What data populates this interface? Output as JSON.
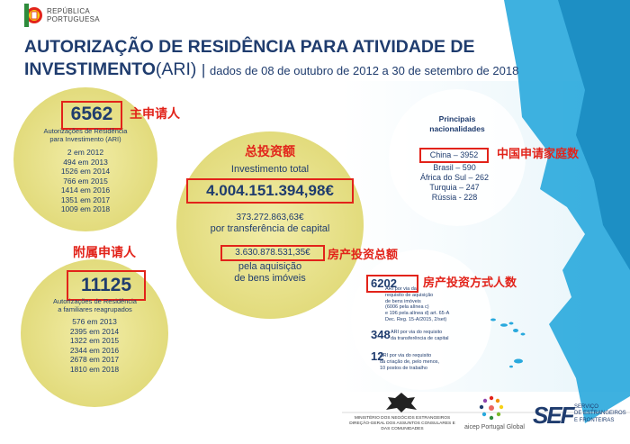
{
  "header": {
    "logo_line1": "REPÚBLICA",
    "logo_line2": "PORTUGUESA",
    "title_line1": "AUTORIZAÇÃO DE RESIDÊNCIA PARA ATIVIDADE DE",
    "title_line2": "INVESTIMENTO",
    "title_acronym": "(ARI) ",
    "title_separator": "| ",
    "date_range": "dados de 08 de outubro de 2012 a 30 de setembro de 2018"
  },
  "annotations": {
    "main_applicants": "主申请人",
    "family_members": "附属申请人",
    "total_investment": "总投资额",
    "real_estate_total": "房产投资总额",
    "china_families": "中国申请家庭数",
    "real_estate_count": "房产投资方式人数"
  },
  "main_applicants": {
    "total": "6562",
    "caption_line1": "Autorizações de Residência",
    "caption_line2": "para Investimento (ARI)",
    "years": [
      "2 em 2012",
      "494 em 2013",
      "1526 em 2014",
      "766 em 2015",
      "1414 em 2016",
      "1351 em 2017",
      "1009 em 2018"
    ]
  },
  "family_members": {
    "total": "11125",
    "caption_line1": "Autorizações de Residência",
    "caption_line2": "a familiares reagrupados",
    "years": [
      "576 em 2013",
      "2395 em 2014",
      "1322 em 2015",
      "2344 em 2016",
      "2678 em 2017",
      "1810 em 2018"
    ]
  },
  "investment": {
    "total_label": "Investimento total",
    "total_amount": "4.004.151.394,98€",
    "capital_transfer_amount": "373.272.863,63€",
    "capital_transfer_label": "por transferência de capital",
    "real_estate_amount": "3.630.878.531,35€",
    "real_estate_label_line1": "pela aquisição",
    "real_estate_label_line2": "de bens imóveis"
  },
  "nationalities": {
    "title_line1": "Principais",
    "title_line2": "nacionalidades",
    "items": [
      "China – 3952",
      "Brasil – 590",
      "África do Sul – 262",
      "Turquia – 247",
      "Rússia - 228"
    ]
  },
  "investment_types": {
    "real_estate": {
      "count": "6202",
      "desc": [
        "ARI por via da",
        "requisito de aquisição",
        "de bens imóveis",
        "(6006 pela alínea c)",
        "e 196 pela alínea d) art. 65-A",
        "Dec. Reg. 15-A/2015, 2/set)"
      ]
    },
    "capital_transfer": {
      "count": "348",
      "desc": [
        "ARI por via do requisito",
        "da transferência de capital"
      ]
    },
    "job_creation": {
      "count": "12",
      "desc": [
        "ARI por via do requisito",
        "da criação de, pelo menos,",
        "10 postos de trabalho"
      ]
    }
  },
  "footer": {
    "ministry_line1": "MINISTÉRIO DOS NEGÓCIOS ESTRANGEIROS",
    "ministry_line2": "DIREÇÃO-GERAL DOS ASSUNTOS CONSULARES E",
    "ministry_line3": "DAS COMUNIDADES",
    "aicep_text": "aicep Portugal Global",
    "sef_logo": "SEF",
    "sef_line1": "SERVIÇO",
    "sef_line2": "DE ESTRANGEIROS",
    "sef_line3": "E FRONTEIRAS"
  },
  "colors": {
    "navy": "#1f3c6e",
    "annotation_red": "#e2231a",
    "circle_yellow": "#e8e290",
    "map_blue": "#29a9dd"
  }
}
